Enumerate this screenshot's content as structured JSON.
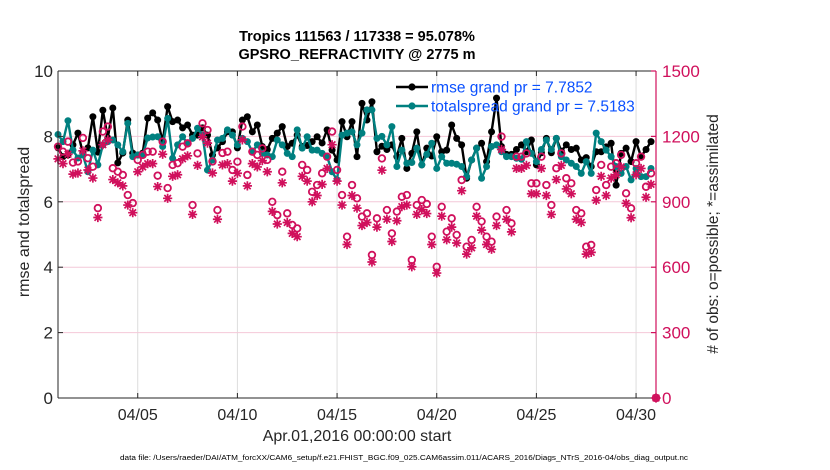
{
  "chart_data": {
    "type": "line",
    "title": [
      "Tropics 111563 / 117338 = 95.078%",
      "GPSRO_REFRACTIVITY @ 2775 m"
    ],
    "xlabel": "Apr.01,2016 00:00:00 start",
    "ylabel_left": "rmse and totalspread",
    "ylabel_right": "# of obs: o=possible; *=assimilated",
    "footer": "data file: /Users/raeder/DAI/ATM_forcXX/CAM6_setup/f.e21.FHIST_BGC.f09_025.CAM6assim.011/ACARS_2016/Diags_NTrS_2016-04/obs_diag_output.nc",
    "x_unit": "days since Apr.01,2016 00:00:00",
    "xlim_days": [
      0,
      30
    ],
    "ylim_left": [
      0,
      10
    ],
    "ylim_right": [
      0,
      1500
    ],
    "grid": true,
    "xticks": {
      "days": [
        4,
        9,
        14,
        19,
        24,
        29
      ],
      "labels": [
        "04/05",
        "04/10",
        "04/15",
        "04/20",
        "04/25",
        "04/30"
      ]
    },
    "yticks_left": {
      "values": [
        0,
        2,
        4,
        6,
        8,
        10
      ],
      "labels": [
        "0",
        "2",
        "4",
        "6",
        "8",
        "10"
      ]
    },
    "yticks_right": {
      "values": [
        0,
        300,
        600,
        900,
        1200,
        1500
      ],
      "labels": [
        "0",
        "300",
        "600",
        "900",
        "1200",
        "1500"
      ]
    },
    "legend": {
      "position": "top-right",
      "entries": [
        {
          "series": "rmse",
          "label": "rmse grand pr = 7.7852"
        },
        {
          "series": "totalspread",
          "label": "totalspread grand pr = 7.5183"
        }
      ]
    },
    "colors": {
      "rmse": "#000000",
      "totalspread": "#008080",
      "obs_count": "#d0105c",
      "legend_text": "#0a50ff",
      "grid_vertical": "#dcdcdc",
      "grid_horizontal": "#f4c8d8"
    },
    "x_days": [
      0,
      0.25,
      0.5,
      0.75,
      1,
      1.25,
      1.5,
      1.75,
      2,
      2.25,
      2.5,
      2.75,
      3,
      3.25,
      3.5,
      3.75,
      4,
      4.25,
      4.5,
      4.75,
      5,
      5.25,
      5.5,
      5.75,
      6,
      6.25,
      6.5,
      6.75,
      7,
      7.25,
      7.5,
      7.75,
      8,
      8.25,
      8.5,
      8.75,
      9,
      9.25,
      9.5,
      9.75,
      10,
      10.25,
      10.5,
      10.75,
      11,
      11.25,
      11.5,
      11.75,
      12,
      12.25,
      12.5,
      12.75,
      13,
      13.25,
      13.5,
      13.75,
      14,
      14.25,
      14.5,
      14.75,
      15,
      15.25,
      15.5,
      15.75,
      16,
      16.25,
      16.5,
      16.75,
      17,
      17.25,
      17.5,
      17.75,
      18,
      18.25,
      18.5,
      18.75,
      19,
      19.25,
      19.5,
      19.75,
      20,
      20.25,
      20.5,
      20.75,
      21,
      21.25,
      21.5,
      21.75,
      22,
      22.25,
      22.5,
      22.75,
      23,
      23.25,
      23.5,
      23.75,
      24,
      24.25,
      24.5,
      24.75,
      25,
      25.25,
      25.5,
      25.75,
      26,
      26.25,
      26.5,
      26.75,
      27,
      27.25,
      27.5,
      27.75,
      28,
      28.25,
      28.5,
      28.75,
      29,
      29.25,
      29.5,
      29.75,
      30
    ],
    "series": [
      {
        "name": "rmse",
        "axis": "left",
        "marker": "filled-circle",
        "values": [
          7.65,
          7.38,
          7.43,
          7.74,
          8.1,
          7.49,
          7.65,
          8.6,
          7.52,
          8.8,
          7.95,
          8.87,
          7.19,
          7.49,
          8.5,
          7.49,
          7.43,
          7.49,
          8.56,
          8.72,
          8.5,
          7.84,
          8.91,
          8.45,
          8.5,
          8.26,
          8.35,
          8.04,
          8.04,
          8.26,
          8.04,
          7.43,
          7.65,
          7.84,
          8.14,
          8.14,
          7.65,
          8.5,
          8.6,
          8.14,
          8.35,
          7.69,
          7.6,
          7.94,
          8.1,
          8.3,
          7.69,
          7.79,
          8.04,
          7.69,
          7.72,
          7.84,
          7.99,
          7.8,
          8.2,
          7.58,
          7.28,
          8.45,
          7.99,
          8.45,
          7.38,
          9.01,
          8.5,
          9.06,
          7.53,
          7.7,
          7.6,
          7.74,
          7.38,
          7.94,
          7.02,
          7.48,
          8.14,
          7.13,
          7.64,
          7.4,
          7.99,
          7.53,
          7.58,
          8.35,
          7.94,
          7.74,
          6.72,
          7.28,
          7.64,
          7.79,
          7.23,
          8.14,
          9.17,
          7.69,
          7.45,
          7.45,
          7.6,
          7.74,
          7.53,
          7.89,
          7.13,
          7.5,
          7.94,
          7.5,
          7.94,
          7.55,
          7.74,
          7.6,
          7.64,
          7.28,
          7.35,
          7.08,
          7.53,
          7.53,
          7.68,
          7.79,
          6.51,
          7.48,
          7.64,
          7.23,
          7.84,
          7.38,
          7.6,
          7.84,
          null
        ]
      },
      {
        "name": "totalspread",
        "axis": "left",
        "marker": "filled-circle",
        "values": [
          8.06,
          7.84,
          8.48,
          7.58,
          7.34,
          7.43,
          6.92,
          7.58,
          7.13,
          7.74,
          7.84,
          7.89,
          7.74,
          7.53,
          8.4,
          7.38,
          7.43,
          7.43,
          7.95,
          7.98,
          7.99,
          7.69,
          8.55,
          7.33,
          7.74,
          7.99,
          7.79,
          7.94,
          8.25,
          8.04,
          6.97,
          7.28,
          7.89,
          7.94,
          8.2,
          8.04,
          7.74,
          7.94,
          7.84,
          7.53,
          7.74,
          7.48,
          7.43,
          7.38,
          7.89,
          7.74,
          7.48,
          7.38,
          8.2,
          7.64,
          7.99,
          7.58,
          7.58,
          7.48,
          7.38,
          6.92,
          6.67,
          8.04,
          8.1,
          8.14,
          7.74,
          8.1,
          8.81,
          8.81,
          7.94,
          8.0,
          7.74,
          8.3,
          7.08,
          7.58,
          7.18,
          7.2,
          7.64,
          7.13,
          7.45,
          7.79,
          7.02,
          7.38,
          7.18,
          7.18,
          7.15,
          7.08,
          6.77,
          7.28,
          7.64,
          6.72,
          7.08,
          7.69,
          7.74,
          7.53,
          7.38,
          7.38,
          7.33,
          7.3,
          7.84,
          7.48,
          7.23,
          7.6,
          7.89,
          7.6,
          7.94,
          7.38,
          7.28,
          7.18,
          7.08,
          6.87,
          7.23,
          6.87,
          8.1,
          7.84,
          7.58,
          7.38,
          7.08,
          6.87,
          7.08,
          6.67,
          7.02,
          6.77,
          6.77,
          7.02,
          null
        ]
      },
      {
        "name": "possible",
        "axis": "right",
        "marker": "open-circle",
        "values": [
          1153,
          1130,
          1176,
          1080,
          1085,
          1193,
          1100,
          1061,
          871,
          1222,
          1245,
          1054,
          1038,
          1023,
          931,
          894,
          1092,
          1115,
          1130,
          1130,
          1020,
          1176,
          963,
          1069,
          1077,
          1153,
          1168,
          885,
          1122,
          1260,
          1229,
          1085,
          862,
          1124,
          1130,
          1046,
          1084,
          1245,
          1023,
          1130,
          1115,
          1145,
          1092,
          900,
          839,
          1038,
          847,
          794,
          778,
          1069,
          1046,
          946,
          977,
          1031,
          1107,
          1222,
          1046,
          931,
          740,
          977,
          916,
          832,
          847,
          656,
          824,
          1099,
          862,
          755,
          855,
          923,
          931,
          633,
          885,
          908,
          890,
          740,
          602,
          877,
          763,
          824,
          748,
          1000,
          694,
          725,
          877,
          810,
          740,
          717,
          832,
          1199,
          862,
          801,
          1107,
          1107,
          1122,
          985,
          985,
          1107,
          977,
          885,
          1054,
          1122,
          1008,
          985,
          862,
          847,
          694,
          702,
          954,
          1069,
          977,
          1061,
          1077,
          1115,
          939,
          870,
          1077,
          1107,
          969,
          1031,
          0
        ]
      },
      {
        "name": "assimilated",
        "axis": "right",
        "marker": "asterisk",
        "values": [
          1097,
          1075,
          1118,
          1027,
          1032,
          1134,
          1046,
          1009,
          828,
          1162,
          1184,
          1002,
          987,
          973,
          885,
          850,
          1038,
          1060,
          1075,
          1075,
          970,
          1118,
          916,
          1017,
          1024,
          1097,
          1111,
          842,
          1067,
          1198,
          1169,
          1032,
          820,
          1069,
          1075,
          995,
          1031,
          1184,
          973,
          1075,
          1060,
          1089,
          1038,
          856,
          798,
          987,
          805,
          755,
          740,
          1017,
          995,
          900,
          929,
          980,
          1053,
          1162,
          995,
          885,
          704,
          929,
          871,
          791,
          805,
          624,
          784,
          1045,
          820,
          718,
          813,
          878,
          885,
          602,
          842,
          864,
          846,
          704,
          573,
          834,
          726,
          784,
          711,
          951,
          660,
          689,
          834,
          770,
          704,
          682,
          791,
          1140,
          820,
          762,
          1053,
          1053,
          1067,
          937,
          937,
          1053,
          929,
          842,
          1002,
          1067,
          959,
          937,
          820,
          805,
          660,
          668,
          907,
          1017,
          929,
          1009,
          1024,
          1060,
          893,
          827,
          1024,
          1053,
          921,
          980,
          0
        ]
      }
    ]
  }
}
